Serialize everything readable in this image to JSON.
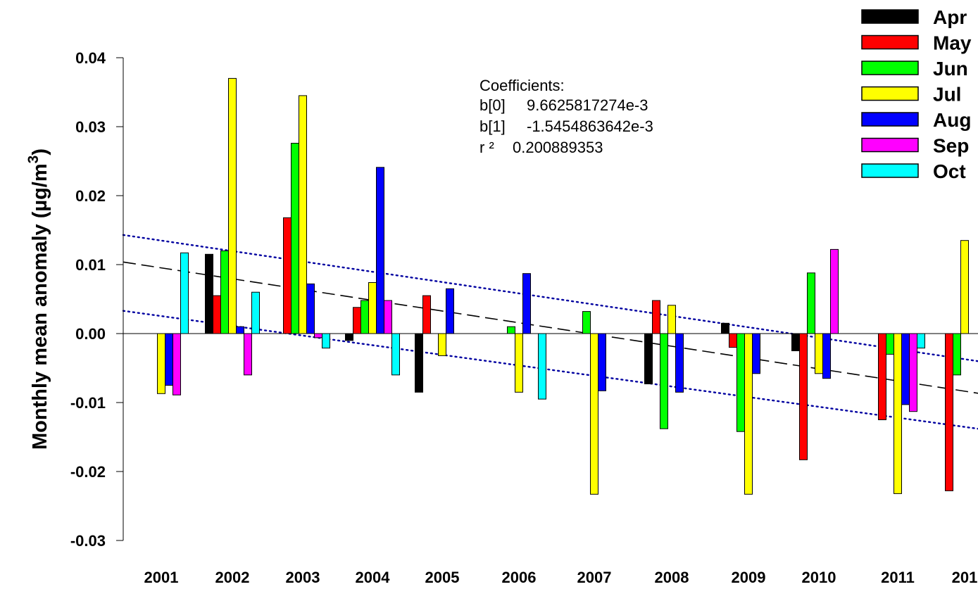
{
  "chart_data": {
    "type": "bar",
    "ylabel": "Monthly mean anomaly (µg/m³)",
    "ylabel_main": "Monthly mean anomaly (µg/m",
    "ylabel_sup": "3",
    "ylabel_close": ")",
    "ylim": [
      -0.03,
      0.04
    ],
    "yticks": [
      -0.03,
      -0.02,
      -0.01,
      0.0,
      0.01,
      0.02,
      0.03,
      0.04
    ],
    "ytick_labels": [
      "-0.03",
      "-0.02",
      "-0.01",
      "0.00",
      "0.01",
      "0.02",
      "0.03",
      "0.04"
    ],
    "categories": [
      "2001",
      "2002",
      "2003",
      "2004",
      "2005",
      "2006",
      "2007",
      "2008",
      "2009",
      "2010",
      "2011",
      "201"
    ],
    "legend_position": "top-right",
    "series": [
      {
        "name": "Apr",
        "color": "#000000",
        "values": [
          null,
          0.0115,
          null,
          -0.001,
          -0.0085,
          null,
          null,
          -0.0073,
          0.0015,
          -0.0025,
          null,
          null
        ]
      },
      {
        "name": "May",
        "color": "#ff0000",
        "values": [
          null,
          0.0055,
          0.0168,
          0.0038,
          0.0055,
          null,
          null,
          0.0048,
          -0.002,
          -0.0183,
          -0.0125,
          -0.0228
        ]
      },
      {
        "name": "Jun",
        "color": "#00ff00",
        "values": [
          null,
          0.012,
          0.0276,
          0.0048,
          null,
          0.001,
          0.0032,
          -0.0138,
          -0.0142,
          0.0088,
          -0.003,
          -0.006
        ]
      },
      {
        "name": "Jul",
        "color": "#ffff00",
        "values": [
          -0.0087,
          0.037,
          0.0345,
          0.0074,
          -0.0032,
          -0.0085,
          -0.0233,
          0.0041,
          -0.0233,
          -0.0058,
          -0.0232,
          0.0135
        ]
      },
      {
        "name": "Aug",
        "color": "#0000ff",
        "values": [
          -0.0075,
          0.001,
          0.0072,
          0.0241,
          0.0065,
          0.0087,
          -0.0083,
          -0.0085,
          -0.0058,
          -0.0065,
          -0.0103,
          null
        ]
      },
      {
        "name": "Sep",
        "color": "#ff00ff",
        "values": [
          -0.0089,
          -0.006,
          -0.0006,
          0.0048,
          null,
          null,
          null,
          null,
          null,
          0.0122,
          -0.0113,
          null
        ]
      },
      {
        "name": "Oct",
        "color": "#00ffff",
        "values": [
          0.0117,
          0.006,
          -0.0021,
          -0.006,
          null,
          -0.0095,
          null,
          null,
          null,
          null,
          -0.0021,
          null
        ]
      }
    ],
    "regression": {
      "b0": 0.0096625817274,
      "b1": -0.0015454863642,
      "upper": [
        0.0143,
        -0.004
      ],
      "lower": [
        0.0033,
        -0.0138
      ]
    },
    "annotation": {
      "title": "Coefficients:",
      "b0_label": "b[0]",
      "b0_value": "9.6625817274e-3",
      "b1_label": "b[1]",
      "b1_value": "-1.5454863642e-3",
      "r2_label": "r ²",
      "r2_value": "0.200889353"
    }
  }
}
